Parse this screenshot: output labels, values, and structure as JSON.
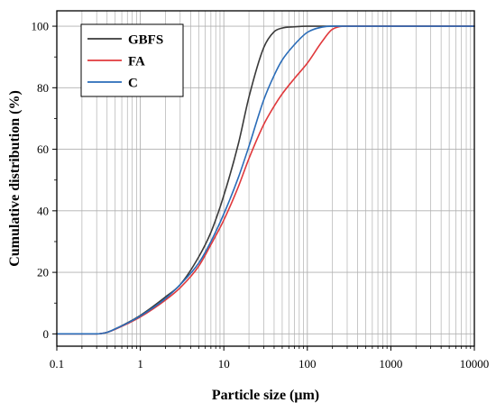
{
  "chart_data": {
    "type": "line",
    "xlabel": "Particle size (μm)",
    "ylabel": "Cumulative distribution (%)",
    "xscale": "log",
    "xlim": [
      0.1,
      10000
    ],
    "ylim": [
      -4,
      105
    ],
    "xticks": [
      "0.1",
      "1",
      "10",
      "100",
      "1000",
      "10000"
    ],
    "yticks": [
      "0",
      "20",
      "40",
      "60",
      "80",
      "100"
    ],
    "grid": true,
    "legend_position": "top-left",
    "series": [
      {
        "name": "GBFS",
        "color": "#3a3a3a",
        "x": [
          0.1,
          0.3,
          0.4,
          0.5,
          0.7,
          1,
          2,
          3,
          5,
          7,
          10,
          15,
          20,
          30,
          40,
          50,
          70,
          100,
          10000
        ],
        "y": [
          0,
          0,
          0.5,
          1.6,
          3.6,
          6,
          12,
          16,
          25,
          33,
          45,
          62,
          77,
          93,
          98.2,
          99.4,
          99.8,
          100,
          100
        ]
      },
      {
        "name": "FA",
        "color": "#e0393c",
        "x": [
          0.1,
          0.3,
          0.4,
          0.5,
          0.7,
          1,
          2,
          3,
          5,
          7,
          10,
          15,
          20,
          30,
          40,
          50,
          70,
          100,
          150,
          200,
          300,
          10000
        ],
        "y": [
          0,
          0,
          0.5,
          1.5,
          3.3,
          5.5,
          11,
          15,
          22,
          29,
          37,
          48,
          57,
          68,
          74,
          78,
          83,
          88,
          95,
          99,
          100,
          100
        ]
      },
      {
        "name": "C",
        "color": "#2a6cb8",
        "x": [
          0.1,
          0.3,
          0.4,
          0.5,
          0.7,
          1,
          2,
          3,
          5,
          7,
          10,
          15,
          20,
          30,
          40,
          50,
          70,
          100,
          150,
          200,
          10000
        ],
        "y": [
          0,
          0,
          0.5,
          1.6,
          3.5,
          5.8,
          11.5,
          16,
          23,
          30,
          39,
          51,
          61,
          76,
          84,
          89,
          94,
          98,
          99.7,
          100,
          100
        ]
      }
    ]
  }
}
